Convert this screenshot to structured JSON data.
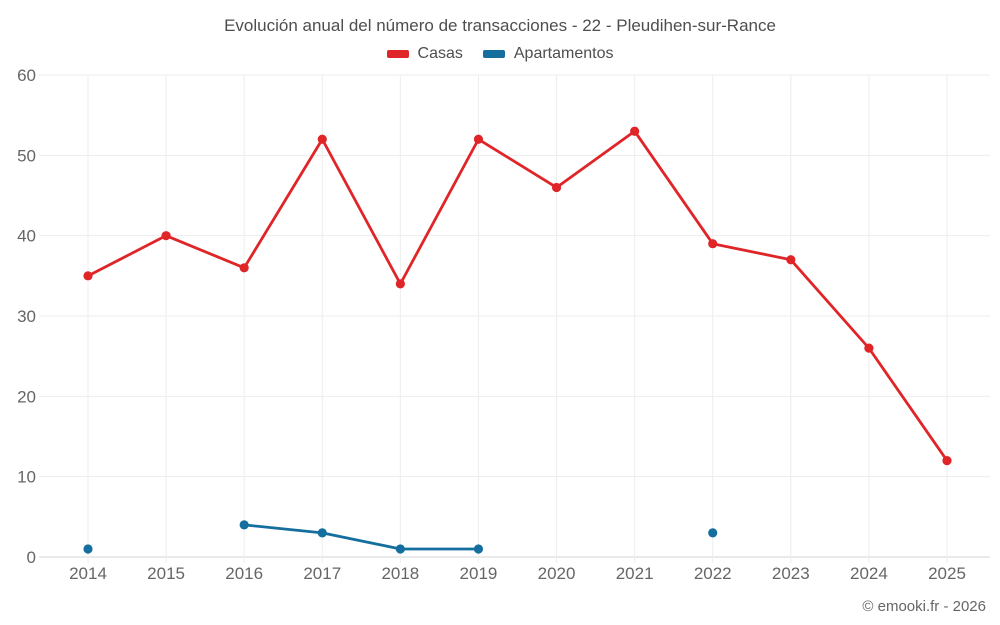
{
  "title": "Evolución anual del número de transacciones - 22 - Pleudihen-sur-Rance",
  "footer": "© emooki.fr - 2026",
  "colors": {
    "casas": "#e02528",
    "apartamentos": "#156f9e",
    "grid": "#ededed",
    "axis": "#d6d6d6",
    "tick_text": "#666666",
    "title_text": "#4e4e4e"
  },
  "chart_data": {
    "type": "line",
    "categories": [
      "2014",
      "2015",
      "2016",
      "2017",
      "2018",
      "2019",
      "2020",
      "2021",
      "2022",
      "2023",
      "2024",
      "2025"
    ],
    "series": [
      {
        "name": "Casas",
        "color": "#e02528",
        "values": [
          35,
          40,
          36,
          52,
          34,
          52,
          46,
          53,
          39,
          37,
          26,
          12
        ]
      },
      {
        "name": "Apartamentos",
        "color": "#156f9e",
        "values": [
          1,
          null,
          4,
          3,
          1,
          1,
          null,
          null,
          3,
          null,
          null,
          null
        ]
      }
    ],
    "title": "Evolución anual del número de transacciones - 22 - Pleudihen-sur-Rance",
    "xlabel": "",
    "ylabel": "",
    "ylim": [
      0,
      60
    ],
    "yticks": [
      0,
      10,
      20,
      30,
      40,
      50,
      60
    ],
    "grid": true,
    "legend_position": "top"
  }
}
